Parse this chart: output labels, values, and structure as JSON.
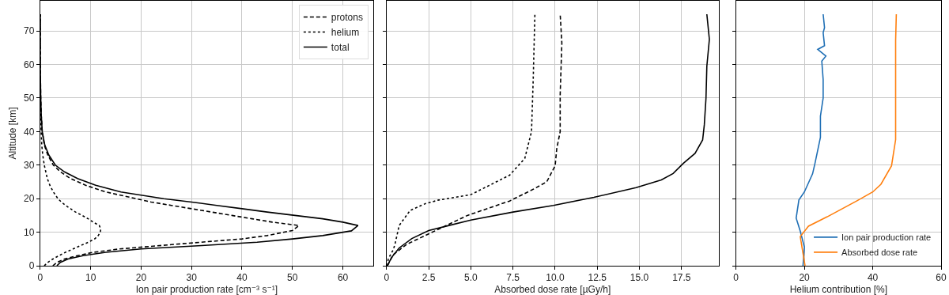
{
  "chart_data": [
    {
      "type": "line",
      "orientation": "horizontal",
      "xlabel": "Ion pair production rate [cm⁻³ s⁻¹]",
      "ylabel": "Altitude [km]",
      "xlim": [
        0,
        66
      ],
      "xticks": [
        0,
        10,
        20,
        30,
        40,
        50,
        60
      ],
      "ylim": [
        0,
        79
      ],
      "yticks": [
        0,
        10,
        20,
        30,
        40,
        50,
        60,
        70
      ],
      "grid": true,
      "legend": "top right",
      "marker": "none",
      "series": [
        {
          "name": "protons",
          "color": "#000000",
          "line_style": "dashed",
          "x": [
            0,
            1,
            2,
            3,
            4,
            5,
            6.3,
            8,
            9,
            10.5,
            12,
            13,
            14,
            15,
            16,
            17,
            18,
            19,
            20,
            22,
            24,
            26,
            28,
            30,
            33,
            36,
            40,
            45,
            50,
            60,
            75
          ],
          "values": [
            2.5,
            3.3,
            4.8,
            7.4,
            10.5,
            15.7,
            26,
            40,
            45,
            50,
            51.3,
            46,
            42,
            38,
            34,
            30,
            26,
            22,
            19,
            13,
            9,
            6,
            4,
            2.6,
            1.5,
            0.8,
            0.4,
            0.2,
            0.1,
            0,
            0
          ]
        },
        {
          "name": "helium",
          "color": "#000000",
          "line_style": "dotted",
          "x": [
            0,
            1,
            2,
            3,
            4,
            5,
            6,
            7,
            8,
            9,
            10,
            11,
            12,
            13,
            14,
            15,
            16,
            17,
            18,
            19,
            20,
            22,
            24,
            26,
            28,
            30,
            33,
            36,
            40,
            45,
            50,
            75
          ],
          "values": [
            0.8,
            1.5,
            2.5,
            3.7,
            5,
            6.5,
            8,
            9.5,
            10.8,
            11.5,
            11.9,
            12,
            11.7,
            10.5,
            9.5,
            8.3,
            7,
            6,
            5,
            4.2,
            3.5,
            2.6,
            1.9,
            1.4,
            1.1,
            0.8,
            0.5,
            0.3,
            0.2,
            0.1,
            0,
            0
          ]
        },
        {
          "name": "total",
          "color": "#000000",
          "line_style": "solid",
          "x": [
            0,
            1,
            2,
            3,
            4,
            5,
            6,
            7,
            8,
            9,
            10.4,
            12,
            13,
            14,
            15,
            16,
            17,
            18,
            19,
            20,
            22,
            24,
            26,
            28,
            30,
            33,
            36,
            40,
            45,
            50,
            60,
            75
          ],
          "values": [
            3.3,
            4,
            5.5,
            8.5,
            13,
            20,
            32,
            43,
            50,
            56,
            61.7,
            63,
            60,
            56,
            50.5,
            45,
            40,
            35,
            30,
            24.5,
            16,
            11,
            7.4,
            4.8,
            3,
            1.7,
            0.9,
            0.4,
            0.2,
            0.1,
            0,
            0
          ]
        }
      ]
    },
    {
      "type": "line",
      "orientation": "horizontal",
      "xlabel": "Absorbed dose rate [µGy/h]",
      "xlim": [
        0,
        19.7
      ],
      "xticks": [
        0,
        2.5,
        {
          "value": 5,
          "label": "5.0"
        },
        7.5,
        {
          "value": 10,
          "label": "10.0"
        },
        12.5,
        {
          "value": 15,
          "label": "15.0"
        },
        17.5
      ],
      "ylim": [
        0,
        79
      ],
      "tick_labels": "x",
      "grid": true,
      "marker": "none",
      "series": [
        {
          "color": "#000000",
          "line_style": "dashed",
          "x": [
            0,
            3.3,
            6.4,
            9.5,
            15,
            19.3,
            22.8,
            25,
            29.8,
            35,
            40,
            51,
            66.4,
            75
          ],
          "values": [
            0.05,
            0.4,
            1.2,
            2.5,
            4.8,
            7.3,
            8.7,
            9.5,
            10,
            10.1,
            10.3,
            10.3,
            10.4,
            10.3
          ]
        },
        {
          "color": "#000000",
          "line_style": "dotted",
          "x": [
            0,
            2,
            4.8,
            6.4,
            12,
            16.5,
            18.5,
            19.6,
            21.2,
            27,
            32,
            40,
            55.5,
            75
          ],
          "values": [
            0.05,
            0.1,
            0.4,
            0.5,
            0.75,
            1.4,
            2.3,
            3.1,
            5,
            7.3,
            8.2,
            8.6,
            8.7,
            8.8
          ]
        },
        {
          "color": "#000000",
          "line_style": "solid",
          "x": [
            0,
            2.5,
            5.3,
            8.1,
            10.5,
            12,
            13.6,
            16,
            18,
            20.4,
            23.3,
            25.6,
            27.5,
            30.5,
            33.5,
            37.5,
            42,
            50,
            59.5,
            67.5,
            75
          ],
          "values": [
            0.05,
            0.3,
            0.75,
            1.5,
            2.5,
            3.7,
            5,
            7.5,
            9.9,
            12.3,
            14.8,
            16.3,
            17,
            17.6,
            18.3,
            18.75,
            18.85,
            18.95,
            19,
            19.15,
            19
          ]
        }
      ]
    },
    {
      "type": "line",
      "orientation": "horizontal",
      "xlabel": "Helium contribution [%]",
      "xlim": [
        0,
        60
      ],
      "xticks": [
        0,
        20,
        40,
        60
      ],
      "ylim": [
        0,
        79
      ],
      "tick_labels": "x",
      "grid": true,
      "legend": "bottom right",
      "marker": "none",
      "series": [
        {
          "name": "Ion pair production rate",
          "color": "#1f6fb5",
          "line_style": "solid",
          "x": [
            0,
            5.6,
            10.3,
            14.2,
            19.6,
            22,
            27.4,
            30.5,
            38.3,
            44.6,
            50,
            55.5,
            61,
            62.5,
            64.5,
            65.6,
            69.5,
            71,
            75
          ],
          "values": [
            19.6,
            20,
            18.8,
            17.6,
            18.4,
            20,
            22.4,
            23.1,
            24.7,
            24.7,
            25.5,
            25.5,
            25.1,
            26.3,
            23.9,
            25.9,
            25.5,
            25.9,
            25.5
          ]
        },
        {
          "name": "Absorbed dose rate",
          "color": "#ff7f0e",
          "line_style": "solid",
          "x": [
            0,
            8.7,
            11.8,
            14.6,
            19.3,
            22,
            24.3,
            29.8,
            37.6,
            43,
            55.5,
            67.2,
            75
          ],
          "values": [
            20.2,
            18.8,
            21.2,
            26.7,
            35.3,
            40,
            42.4,
            45.5,
            46.7,
            46.7,
            46.7,
            46.7,
            46.9
          ]
        }
      ]
    }
  ]
}
